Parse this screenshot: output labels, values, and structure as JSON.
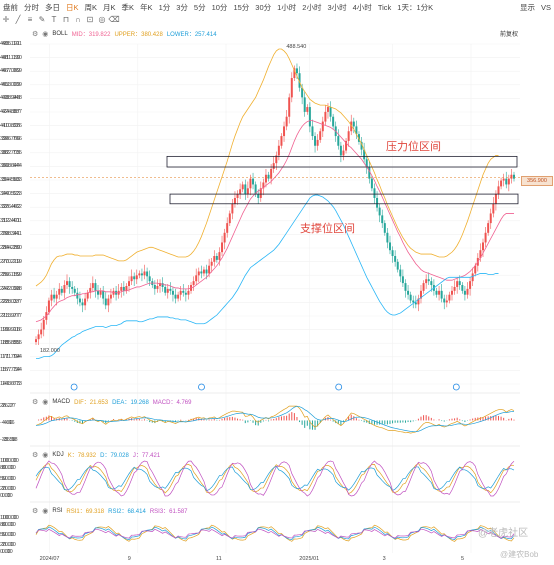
{
  "toolbar": {
    "periods": [
      "盘前",
      "分时",
      "多日",
      "日K",
      "周K",
      "月K",
      "季K",
      "年K",
      "1分",
      "3分",
      "5分",
      "10分",
      "15分",
      "30分",
      "1小时",
      "2小时",
      "3小时",
      "4小时",
      "Tick",
      "1天：1分K"
    ],
    "active_period": "日K",
    "display_label": "显示",
    "right_label": "VS"
  },
  "boll": {
    "name": "BOLL",
    "mid_label": "MID：",
    "mid": "319.822",
    "upper_label": "UPPER：",
    "upper": "380.428",
    "lower_label": "LOWER：",
    "lower": "257.414",
    "right_label": "前复权"
  },
  "macd": {
    "name": "MACD",
    "dif_label": "DIF：",
    "dif": "21.653",
    "dea_label": "DEA：",
    "dea": "19.268",
    "macd_label": "MACD：",
    "macd": "4.769"
  },
  "kdj": {
    "name": "KDJ",
    "k_label": "K：",
    "k": "78.932",
    "d_label": "D：",
    "d": "79.028",
    "j_label": "J：",
    "j": "77.421"
  },
  "rsi": {
    "name": "RSI",
    "rsi1_label": "RSI1：",
    "rsi1": "69.318",
    "rsi2_label": "RSI2：",
    "rsi2": "68.414",
    "rsi3_label": "RSI3：",
    "rsi3": "61.587"
  },
  "current_price": "356.900",
  "annotations": {
    "resistance": "压力位区间",
    "support": "支撑位区间"
  },
  "watermark1": "@老虎社区",
  "watermark2": "@建农Bob",
  "colors": {
    "up": "#ef5350",
    "down": "#26a69a",
    "mid": "#f06292",
    "upper": "#f0b030",
    "lower": "#29b6f6"
  },
  "chart_data": [
    {
      "type": "candlestick",
      "title": "",
      "ylim": [
        143.673,
        495.191
      ],
      "y_ticks": [
        "495.191",
        "481.130",
        "467.069",
        "453.009",
        "438.948",
        "424.887",
        "410.826",
        "396.766",
        "382.705",
        "368.644",
        "354.583",
        "340.523",
        "326.462",
        "312.401",
        "298.341",
        "284.280",
        "270.219",
        "256.159",
        "242.098",
        "228.037",
        "213.977",
        "199.916",
        "185.855",
        "171.794",
        "157.734",
        "143.673"
      ],
      "x_ticks": [
        "2024/07",
        "9",
        "11",
        "2025/01",
        "3",
        "5"
      ],
      "high_annotation": "488.540",
      "low_annotation": "182.000",
      "close_series": [
        190,
        195,
        200,
        210,
        218,
        230,
        236,
        232,
        236,
        242,
        238,
        246,
        250,
        244,
        242,
        238,
        232,
        228,
        225,
        232,
        238,
        243,
        248,
        240,
        236,
        240,
        232,
        225,
        232,
        236,
        240,
        236,
        240,
        244,
        240,
        245,
        250,
        255,
        252,
        256,
        258,
        256,
        260,
        255,
        250,
        246,
        242,
        245,
        248,
        244,
        238,
        242,
        240,
        236,
        232,
        236,
        240,
        238,
        236,
        240,
        246,
        250,
        256,
        260,
        258,
        262,
        258,
        266,
        270,
        276,
        272,
        280,
        290,
        300,
        310,
        320,
        330,
        336,
        340,
        345,
        350,
        340,
        346,
        356,
        350,
        340,
        336,
        346,
        352,
        360,
        356,
        366,
        372,
        380,
        390,
        400,
        410,
        420,
        440,
        460,
        470,
        465,
        450,
        440,
        425,
        430,
        410,
        400,
        390,
        396,
        405,
        415,
        425,
        430,
        420,
        410,
        400,
        390,
        380,
        385,
        395,
        405,
        415,
        410,
        402,
        394,
        386,
        376,
        368,
        356,
        346,
        336,
        326,
        318,
        310,
        300,
        290,
        282,
        276,
        270,
        262,
        255,
        248,
        240,
        236,
        230,
        228,
        226,
        232,
        240,
        248,
        252,
        250,
        246,
        240,
        236,
        240,
        232,
        228,
        230,
        236,
        240,
        244,
        250,
        246,
        240,
        236,
        242,
        250,
        258,
        266,
        274,
        282,
        290,
        300,
        310,
        320,
        330,
        340,
        348,
        354,
        356,
        350,
        356,
        360,
        356
      ],
      "mid_series": [
        208,
        209,
        210,
        212,
        214,
        217,
        221,
        224,
        227,
        229,
        230,
        231,
        233,
        234,
        235,
        235,
        236,
        236,
        237,
        237,
        238,
        239,
        239,
        240,
        240,
        240,
        240,
        239,
        239,
        239,
        238,
        238,
        238,
        239,
        240,
        240,
        241,
        242,
        243,
        244,
        244,
        245,
        246,
        247,
        248,
        248,
        248,
        248,
        247,
        247,
        246,
        246,
        245,
        244,
        243,
        243,
        242,
        242,
        242,
        242,
        243,
        244,
        246,
        248,
        250,
        252,
        254,
        257,
        260,
        263,
        266,
        270,
        274,
        279,
        284,
        290,
        296,
        302,
        308,
        314,
        320,
        325,
        330,
        335,
        338,
        341,
        343,
        345,
        347,
        349,
        351,
        353,
        356,
        359,
        362,
        366,
        370,
        375,
        381,
        388,
        395,
        401,
        406,
        410,
        413,
        415,
        416,
        416,
        415,
        414,
        413,
        412,
        411,
        410,
        409,
        407,
        405,
        402,
        399,
        396,
        393,
        390,
        388,
        385,
        382,
        379,
        376,
        372,
        368,
        364,
        359,
        354,
        348,
        343,
        337,
        331,
        325,
        319,
        313,
        307,
        301,
        296,
        290,
        285,
        280,
        276,
        272,
        268,
        265,
        262,
        260,
        259,
        258,
        257,
        256,
        255,
        254,
        253,
        252,
        251,
        251,
        251,
        252,
        253,
        254,
        255,
        256,
        258,
        260,
        263,
        266,
        270,
        274,
        279,
        284,
        289,
        294,
        299,
        304,
        309,
        314,
        318,
        320,
        320,
        320,
        320
      ],
      "upper_series": [
        245,
        247,
        249,
        252,
        256,
        262,
        268,
        272,
        275,
        276,
        276,
        277,
        278,
        278,
        278,
        277,
        277,
        276,
        276,
        276,
        276,
        276,
        276,
        277,
        277,
        277,
        277,
        276,
        275,
        274,
        273,
        272,
        271,
        271,
        271,
        272,
        274,
        276,
        278,
        280,
        281,
        282,
        283,
        284,
        285,
        285,
        284,
        283,
        282,
        281,
        280,
        279,
        278,
        277,
        276,
        275,
        275,
        275,
        275,
        276,
        278,
        281,
        285,
        290,
        296,
        303,
        310,
        318,
        326,
        334,
        342,
        350,
        358,
        366,
        374,
        383,
        392,
        400,
        407,
        414,
        420,
        424,
        428,
        432,
        436,
        440,
        446,
        452,
        458,
        465,
        472,
        478,
        484,
        488,
        490,
        490,
        488,
        485,
        480,
        474,
        468,
        462,
        456,
        450,
        446,
        442,
        438,
        436,
        434,
        433,
        432,
        432,
        432,
        431,
        430,
        429,
        428,
        426,
        424,
        421,
        418,
        415,
        411,
        407,
        402,
        397,
        392,
        386,
        380,
        374,
        368,
        362,
        355,
        349,
        342,
        336,
        329,
        323,
        317,
        311,
        305,
        300,
        295,
        291,
        287,
        284,
        282,
        280,
        279,
        278,
        278,
        278,
        278,
        278,
        277,
        276,
        275,
        275,
        275,
        276,
        278,
        280,
        283,
        287,
        292,
        298,
        305,
        312,
        320,
        328,
        336,
        344,
        352,
        360,
        366,
        372,
        376,
        378,
        380,
        380
      ],
      "lower_series": [
        170,
        170,
        171,
        172,
        172,
        172,
        173,
        175,
        178,
        181,
        184,
        186,
        188,
        190,
        192,
        193,
        195,
        196,
        198,
        199,
        200,
        201,
        202,
        203,
        203,
        203,
        203,
        202,
        203,
        204,
        204,
        204,
        205,
        206,
        208,
        209,
        209,
        209,
        209,
        209,
        208,
        208,
        209,
        210,
        211,
        211,
        212,
        213,
        213,
        213,
        213,
        213,
        212,
        212,
        211,
        211,
        210,
        210,
        210,
        209,
        208,
        207,
        206,
        206,
        206,
        206,
        207,
        209,
        211,
        213,
        215,
        218,
        221,
        224,
        227,
        230,
        233,
        237,
        241,
        246,
        251,
        256,
        260,
        264,
        266,
        268,
        270,
        272,
        274,
        276,
        278,
        280,
        282,
        285,
        288,
        292,
        296,
        300,
        304,
        308,
        312,
        316,
        320,
        324,
        328,
        332,
        336,
        338,
        339,
        339,
        338,
        337,
        335,
        333,
        330,
        327,
        323,
        318,
        313,
        308,
        302,
        296,
        290,
        284,
        278,
        272,
        266,
        260,
        254,
        249,
        244,
        239,
        234,
        229,
        225,
        221,
        218,
        216,
        215,
        215,
        216,
        217,
        219,
        221,
        223,
        225,
        227,
        229,
        231,
        233,
        235,
        237,
        239,
        241,
        243,
        245,
        247,
        249,
        251,
        253,
        254,
        254,
        254,
        254,
        254,
        254,
        254,
        254,
        254,
        255,
        256,
        257,
        258,
        258,
        258,
        257,
        257,
        257,
        258,
        258
      ]
    },
    {
      "type": "bar",
      "title": "MACD",
      "y_ticks": [
        "26.27",
        "-4.66",
        "-35.58"
      ],
      "ylim": [
        -35.58,
        26.27
      ]
    },
    {
      "type": "line",
      "title": "KDJ",
      "y_ticks": [
        "100.00",
        "80.00",
        "50.00",
        "20.00",
        "0.00"
      ],
      "ylim": [
        0,
        100
      ]
    },
    {
      "type": "line",
      "title": "RSI",
      "y_ticks": [
        "100.00",
        "80.00",
        "50.00",
        "20.00",
        "0.00"
      ],
      "ylim": [
        0,
        100
      ]
    }
  ]
}
